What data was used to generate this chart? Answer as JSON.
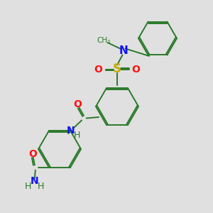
{
  "background_color": "#e0e0e0",
  "bond_color": "#2a7a2a",
  "atom_colors": {
    "N": "#1010ff",
    "O": "#ff1010",
    "S": "#ccaa00",
    "H": "#2a7a2a"
  },
  "figsize": [
    3.0,
    3.0
  ],
  "dpi": 100
}
